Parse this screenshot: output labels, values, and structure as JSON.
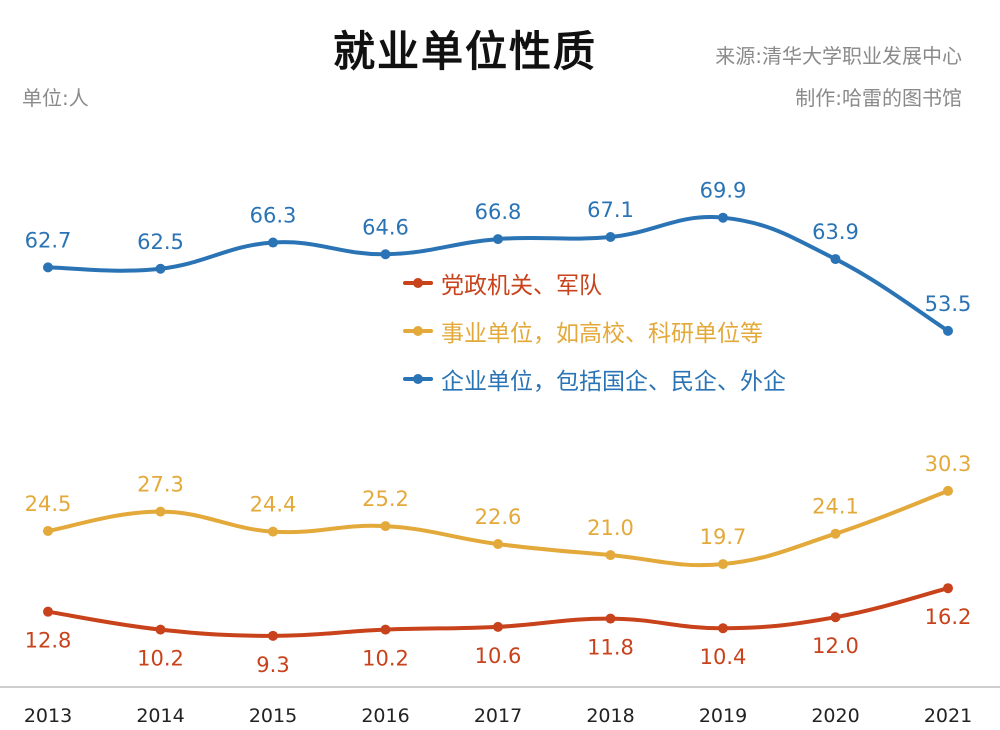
{
  "header": {
    "title": "就业单位性质",
    "source": "来源:清华大学职业发展中心",
    "maker": "制作:哈雷的图书馆",
    "unit": "单位:人"
  },
  "chart_data": {
    "type": "line",
    "title": "就业单位性质",
    "x": [
      "2013",
      "2014",
      "2015",
      "2016",
      "2017",
      "2018",
      "2019",
      "2020",
      "2021"
    ],
    "series": [
      {
        "name": "党政机关、军队",
        "color": "#c8421b",
        "values": [
          12.8,
          10.2,
          9.3,
          10.2,
          10.6,
          11.8,
          10.4,
          12.0,
          16.2
        ],
        "labels": [
          "12.8",
          "10.2",
          "9.3",
          "10.2",
          "10.6",
          "11.8",
          "10.4",
          "12.0",
          "16.2"
        ]
      },
      {
        "name": "事业单位，如高校、科研单位等",
        "color": "#e3a93a",
        "values": [
          24.5,
          27.3,
          24.4,
          25.2,
          22.6,
          21.0,
          19.7,
          24.1,
          30.3
        ],
        "labels": [
          "24.5",
          "27.3",
          "24.4",
          "25.2",
          "22.6",
          "21.0",
          "19.7",
          "24.1",
          "30.3"
        ]
      },
      {
        "name": "企业单位，包括国企、民企、外企",
        "color": "#2a73b4",
        "values": [
          62.7,
          62.5,
          66.3,
          64.6,
          66.8,
          67.1,
          69.9,
          63.9,
          53.5
        ],
        "labels": [
          "62.7",
          "62.5",
          "66.3",
          "64.6",
          "66.8",
          "67.1",
          "69.9",
          "63.9",
          "53.5"
        ]
      }
    ],
    "legend_position": "center",
    "grid": false
  }
}
